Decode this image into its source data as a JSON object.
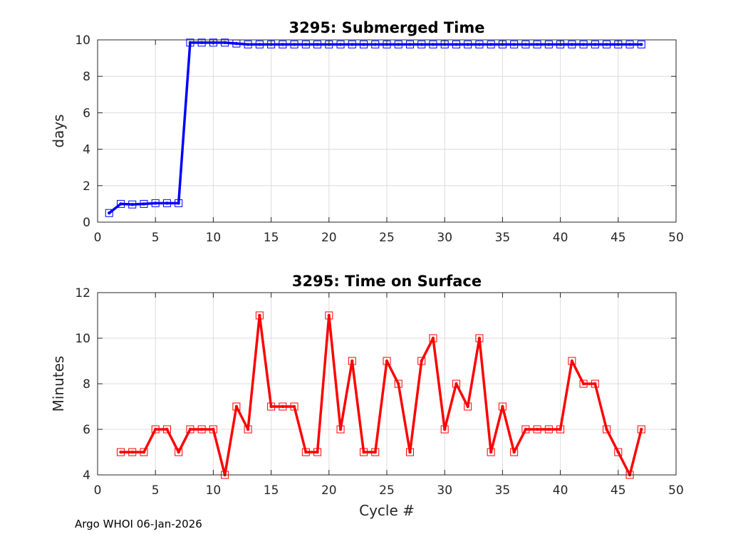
{
  "footer": "Argo WHOI 06-Jan-2026",
  "chart_data": [
    {
      "type": "line",
      "title": "3295: Submerged Time",
      "xlabel": "",
      "ylabel": "days",
      "xlim": [
        0,
        50
      ],
      "ylim": [
        0,
        10
      ],
      "xticks": [
        0,
        5,
        10,
        15,
        20,
        25,
        30,
        35,
        40,
        45,
        50
      ],
      "yticks": [
        0,
        2,
        4,
        6,
        8,
        10
      ],
      "grid": true,
      "color": "#0000ff",
      "marker": "square",
      "series": [
        {
          "name": "Submerged Time",
          "x": [
            1,
            2,
            3,
            4,
            5,
            6,
            7,
            8,
            9,
            10,
            11,
            12,
            13,
            14,
            15,
            16,
            17,
            18,
            19,
            20,
            21,
            22,
            23,
            24,
            25,
            26,
            27,
            28,
            29,
            30,
            31,
            32,
            33,
            34,
            35,
            36,
            37,
            38,
            39,
            40,
            41,
            42,
            43,
            44,
            45,
            46,
            47
          ],
          "y": [
            0.5,
            1.0,
            0.97,
            1.0,
            1.04,
            1.04,
            1.04,
            9.85,
            9.85,
            9.85,
            9.85,
            9.8,
            9.75,
            9.75,
            9.75,
            9.75,
            9.75,
            9.75,
            9.75,
            9.75,
            9.75,
            9.75,
            9.75,
            9.75,
            9.75,
            9.75,
            9.75,
            9.75,
            9.75,
            9.75,
            9.75,
            9.75,
            9.75,
            9.75,
            9.75,
            9.75,
            9.75,
            9.75,
            9.75,
            9.75,
            9.75,
            9.75,
            9.75,
            9.75,
            9.75,
            9.75,
            9.75
          ]
        }
      ]
    },
    {
      "type": "line",
      "title": "3295: Time on Surface",
      "xlabel": "Cycle #",
      "ylabel": "Minutes",
      "xlim": [
        0,
        50
      ],
      "ylim": [
        4,
        12
      ],
      "xticks": [
        0,
        5,
        10,
        15,
        20,
        25,
        30,
        35,
        40,
        45,
        50
      ],
      "yticks": [
        4,
        6,
        8,
        10,
        12
      ],
      "grid": true,
      "color": "#ff0000",
      "marker": "square",
      "series": [
        {
          "name": "Time on Surface",
          "x": [
            2,
            3,
            4,
            5,
            6,
            7,
            8,
            9,
            10,
            11,
            12,
            13,
            14,
            15,
            16,
            17,
            18,
            19,
            20,
            21,
            22,
            23,
            24,
            25,
            26,
            27,
            28,
            29,
            30,
            31,
            32,
            33,
            34,
            35,
            36,
            37,
            38,
            39,
            40,
            41,
            42,
            43,
            44,
            45,
            46,
            47
          ],
          "y": [
            5,
            5,
            5,
            6,
            6,
            5,
            6,
            6,
            6,
            4,
            7,
            6,
            11,
            7,
            7,
            7,
            5,
            5,
            11,
            6,
            9,
            5,
            5,
            9,
            8,
            5,
            9,
            10,
            6,
            8,
            7,
            10,
            5,
            7,
            5,
            6,
            6,
            6,
            6,
            9,
            8,
            8,
            6,
            5,
            4,
            6
          ]
        }
      ]
    }
  ]
}
